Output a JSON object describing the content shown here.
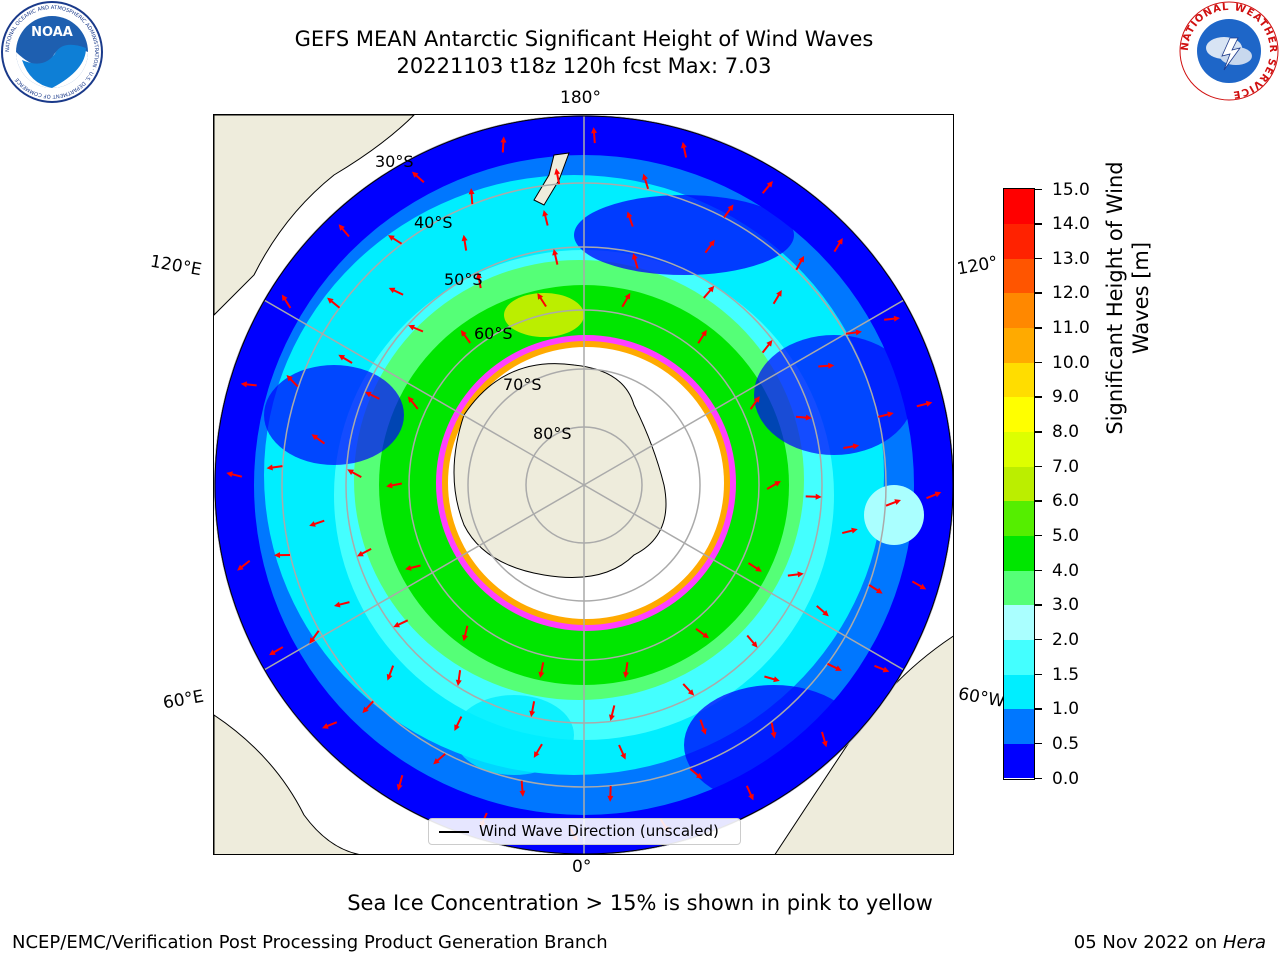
{
  "header": {
    "title_line1": "GEFS MEAN Antarctic Significant Height of Wind Waves",
    "title_line2": "20221103 t18z 120h fcst   Max: 7.03"
  },
  "logos": {
    "noaa_text": "NOAA",
    "noaa_ring": "NATIONAL OCEANIC AND ATMOSPHERIC ADMINISTRATION · U.S. DEPARTMENT OF COMMERCE",
    "nws_ring": "NATIONAL WEATHER SERVICE"
  },
  "map": {
    "lon_labels": {
      "top": "180°",
      "bottom": "0°",
      "upper_left": "120°E",
      "upper_right": "120°",
      "lower_left": "60°E",
      "lower_right": "60°W"
    },
    "lat_labels": [
      "30°S",
      "40°S",
      "50°S",
      "60°S",
      "70°S",
      "80°S"
    ],
    "legend_label": "Wind Wave Direction (unscaled)",
    "colors": {
      "land": "#eeecdc",
      "ocean_low": "#0000ff",
      "ocean_mid": "#00eeff",
      "ocean_high": "#00dd00",
      "arrows": "#ff0000",
      "ice": "#ff40ff"
    }
  },
  "colorbar": {
    "title_line1": "Significant Height of Wind",
    "title_line2": "Waves [m]",
    "ticks": [
      "0.0",
      "0.5",
      "1.0",
      "1.5",
      "2.0",
      "3.0",
      "4.0",
      "5.0",
      "6.0",
      "7.0",
      "8.0",
      "9.0",
      "10.0",
      "11.0",
      "12.0",
      "13.0",
      "14.0",
      "15.0"
    ],
    "colors": [
      "#0000ff",
      "#0077ff",
      "#00eeff",
      "#44ffff",
      "#aaffff",
      "#55ff77",
      "#00e600",
      "#55ee00",
      "#bbee00",
      "#ddff00",
      "#ffff00",
      "#ffdd00",
      "#ffaa00",
      "#ff8800",
      "#ff5500",
      "#ff2200",
      "#ff0000"
    ]
  },
  "footer": {
    "note": "Sea Ice Concentration > 15% is shown in pink to yellow",
    "left": "NCEP/EMC/Verification Post Processing Product Generation Branch",
    "right_date": "05 Nov 2022 on ",
    "right_host": "Hera"
  }
}
